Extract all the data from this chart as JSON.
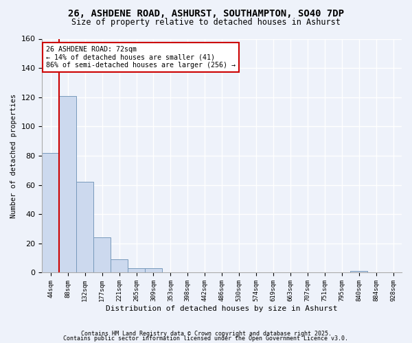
{
  "title": "26, ASHDENE ROAD, ASHURST, SOUTHAMPTON, SO40 7DP",
  "subtitle": "Size of property relative to detached houses in Ashurst",
  "xlabel": "Distribution of detached houses by size in Ashurst",
  "ylabel": "Number of detached properties",
  "bar_color": "#ccd9ee",
  "bar_edge_color": "#7799bb",
  "background_color": "#eef2fa",
  "grid_color": "#ffffff",
  "categories": [
    "44sqm",
    "88sqm",
    "132sqm",
    "177sqm",
    "221sqm",
    "265sqm",
    "309sqm",
    "353sqm",
    "398sqm",
    "442sqm",
    "486sqm",
    "530sqm",
    "574sqm",
    "619sqm",
    "663sqm",
    "707sqm",
    "751sqm",
    "795sqm",
    "840sqm",
    "884sqm",
    "928sqm"
  ],
  "values": [
    82,
    121,
    62,
    24,
    9,
    3,
    3,
    0,
    0,
    0,
    0,
    0,
    0,
    0,
    0,
    0,
    0,
    0,
    1,
    0,
    0
  ],
  "ylim": [
    0,
    160
  ],
  "yticks": [
    0,
    20,
    40,
    60,
    80,
    100,
    120,
    140,
    160
  ],
  "red_line_x": 0.5,
  "annotation_text": "26 ASHDENE ROAD: 72sqm\n← 14% of detached houses are smaller (41)\n86% of semi-detached houses are larger (256) →",
  "annotation_box_color": "#ffffff",
  "annotation_box_edge": "#cc0000",
  "red_line_color": "#cc0000",
  "footer1": "Contains HM Land Registry data © Crown copyright and database right 2025.",
  "footer2": "Contains public sector information licensed under the Open Government Licence v3.0."
}
